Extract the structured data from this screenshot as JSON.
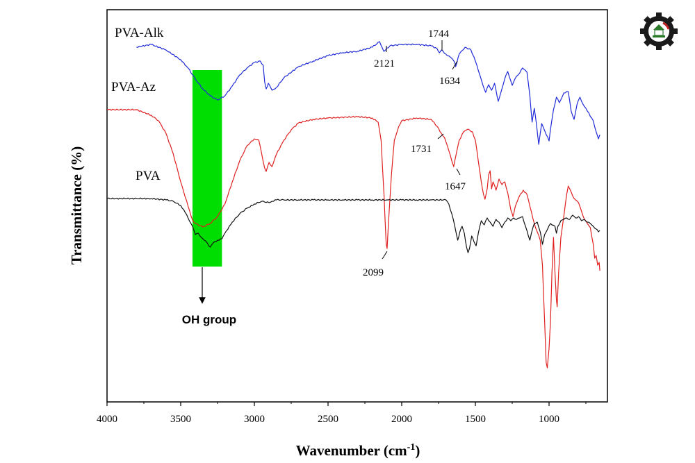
{
  "chart_data": {
    "type": "line",
    "title": "",
    "xlabel": "Wavenumber (cm",
    "xlabel_sup": "-1",
    "xlabel_close": ")",
    "ylabel": "Transmittance (%)",
    "xlim": [
      4000,
      650
    ],
    "x_reversed": true,
    "y_ticks_shown": false,
    "x_ticks": [
      4000,
      3500,
      3000,
      2500,
      2000,
      1500,
      1000
    ],
    "grid": false,
    "legend": "none",
    "series": [
      {
        "name": "PVA-Alk",
        "color": "#1f2bd8",
        "y_offset": 68,
        "points": [
          [
            3800,
            0
          ],
          [
            3700,
            -4
          ],
          [
            3600,
            4
          ],
          [
            3500,
            18
          ],
          [
            3450,
            30
          ],
          [
            3400,
            46
          ],
          [
            3350,
            60
          ],
          [
            3300,
            70
          ],
          [
            3250,
            76
          ],
          [
            3200,
            70
          ],
          [
            3150,
            56
          ],
          [
            3100,
            40
          ],
          [
            3050,
            30
          ],
          [
            3000,
            22
          ],
          [
            2960,
            20
          ],
          [
            2940,
            26
          ],
          [
            2930,
            50
          ],
          [
            2920,
            60
          ],
          [
            2905,
            52
          ],
          [
            2880,
            62
          ],
          [
            2850,
            58
          ],
          [
            2800,
            44
          ],
          [
            2700,
            28
          ],
          [
            2600,
            20
          ],
          [
            2500,
            12
          ],
          [
            2400,
            8
          ],
          [
            2300,
            6
          ],
          [
            2200,
            0
          ],
          [
            2150,
            -8
          ],
          [
            2121,
            6
          ],
          [
            2080,
            -2
          ],
          [
            2000,
            -4
          ],
          [
            1900,
            -4
          ],
          [
            1800,
            -2
          ],
          [
            1760,
            2
          ],
          [
            1744,
            8
          ],
          [
            1730,
            4
          ],
          [
            1700,
            10
          ],
          [
            1660,
            16
          ],
          [
            1640,
            22
          ],
          [
            1634,
            28
          ],
          [
            1610,
            10
          ],
          [
            1570,
            0
          ],
          [
            1530,
            4
          ],
          [
            1500,
            20
          ],
          [
            1470,
            40
          ],
          [
            1440,
            60
          ],
          [
            1430,
            65
          ],
          [
            1410,
            54
          ],
          [
            1390,
            62
          ],
          [
            1370,
            52
          ],
          [
            1345,
            78
          ],
          [
            1320,
            60
          ],
          [
            1300,
            45
          ],
          [
            1280,
            35
          ],
          [
            1250,
            55
          ],
          [
            1230,
            45
          ],
          [
            1210,
            40
          ],
          [
            1180,
            30
          ],
          [
            1150,
            36
          ],
          [
            1130,
            70
          ],
          [
            1115,
            108
          ],
          [
            1100,
            88
          ],
          [
            1085,
            112
          ],
          [
            1070,
            140
          ],
          [
            1050,
            110
          ],
          [
            1030,
            120
          ],
          [
            1000,
            135
          ],
          [
            990,
            118
          ],
          [
            970,
            90
          ],
          [
            950,
            72
          ],
          [
            930,
            80
          ],
          [
            900,
            66
          ],
          [
            870,
            64
          ],
          [
            850,
            92
          ],
          [
            830,
            104
          ],
          [
            810,
            82
          ],
          [
            790,
            72
          ],
          [
            770,
            82
          ],
          [
            740,
            92
          ],
          [
            700,
            106
          ],
          [
            680,
            122
          ],
          [
            665,
            132
          ],
          [
            655,
            126
          ]
        ]
      },
      {
        "name": "PVA-Az",
        "color": "#e02020",
        "y_offset": 162,
        "points": [
          [
            4000,
            -4
          ],
          [
            3800,
            -4
          ],
          [
            3700,
            4
          ],
          [
            3650,
            12
          ],
          [
            3600,
            30
          ],
          [
            3550,
            60
          ],
          [
            3500,
            100
          ],
          [
            3450,
            135
          ],
          [
            3420,
            155
          ],
          [
            3400,
            160
          ],
          [
            3350,
            165
          ],
          [
            3300,
            160
          ],
          [
            3250,
            150
          ],
          [
            3200,
            132
          ],
          [
            3150,
            100
          ],
          [
            3100,
            70
          ],
          [
            3050,
            48
          ],
          [
            3000,
            38
          ],
          [
            2970,
            40
          ],
          [
            2950,
            60
          ],
          [
            2930,
            80
          ],
          [
            2920,
            85
          ],
          [
            2900,
            72
          ],
          [
            2880,
            78
          ],
          [
            2850,
            60
          ],
          [
            2800,
            40
          ],
          [
            2750,
            25
          ],
          [
            2700,
            15
          ],
          [
            2600,
            10
          ],
          [
            2500,
            8
          ],
          [
            2300,
            6
          ],
          [
            2200,
            8
          ],
          [
            2160,
            14
          ],
          [
            2140,
            40
          ],
          [
            2120,
            120
          ],
          [
            2105,
            190
          ],
          [
            2099,
            196
          ],
          [
            2090,
            160
          ],
          [
            2070,
            90
          ],
          [
            2050,
            40
          ],
          [
            2020,
            20
          ],
          [
            2000,
            12
          ],
          [
            1900,
            8
          ],
          [
            1800,
            10
          ],
          [
            1760,
            20
          ],
          [
            1731,
            30
          ],
          [
            1710,
            36
          ],
          [
            1680,
            55
          ],
          [
            1660,
            70
          ],
          [
            1647,
            78
          ],
          [
            1630,
            60
          ],
          [
            1610,
            40
          ],
          [
            1580,
            28
          ],
          [
            1550,
            24
          ],
          [
            1520,
            28
          ],
          [
            1500,
            40
          ],
          [
            1480,
            70
          ],
          [
            1460,
            100
          ],
          [
            1445,
            118
          ],
          [
            1435,
            125
          ],
          [
            1420,
            110
          ],
          [
            1410,
            90
          ],
          [
            1400,
            84
          ],
          [
            1390,
            110
          ],
          [
            1380,
            100
          ],
          [
            1360,
            112
          ],
          [
            1340,
            96
          ],
          [
            1320,
            104
          ],
          [
            1300,
            100
          ],
          [
            1280,
            116
          ],
          [
            1260,
            140
          ],
          [
            1245,
            150
          ],
          [
            1230,
            136
          ],
          [
            1200,
            120
          ],
          [
            1175,
            112
          ],
          [
            1150,
            118
          ],
          [
            1130,
            135
          ],
          [
            1100,
            160
          ],
          [
            1080,
            172
          ],
          [
            1060,
            184
          ],
          [
            1045,
            220
          ],
          [
            1030,
            300
          ],
          [
            1020,
            360
          ],
          [
            1012,
            368
          ],
          [
            1000,
            340
          ],
          [
            990,
            300
          ],
          [
            980,
            230
          ],
          [
            970,
            180
          ],
          [
            960,
            230
          ],
          [
            950,
            270
          ],
          [
            945,
            280
          ],
          [
            935,
            230
          ],
          [
            920,
            180
          ],
          [
            900,
            150
          ],
          [
            880,
            118
          ],
          [
            870,
            106
          ],
          [
            860,
            110
          ],
          [
            840,
            120
          ],
          [
            820,
            126
          ],
          [
            800,
            130
          ],
          [
            780,
            142
          ],
          [
            760,
            154
          ],
          [
            740,
            160
          ],
          [
            720,
            166
          ],
          [
            700,
            190
          ],
          [
            690,
            210
          ],
          [
            680,
            206
          ],
          [
            670,
            220
          ],
          [
            660,
            216
          ],
          [
            655,
            228
          ]
        ]
      },
      {
        "name": "PVA",
        "color": "#111111",
        "y_offset": 286,
        "points": [
          [
            4000,
            0
          ],
          [
            3800,
            0
          ],
          [
            3700,
            0
          ],
          [
            3600,
            2
          ],
          [
            3550,
            4
          ],
          [
            3500,
            10
          ],
          [
            3470,
            20
          ],
          [
            3450,
            28
          ],
          [
            3420,
            40
          ],
          [
            3400,
            52
          ],
          [
            3380,
            50
          ],
          [
            3360,
            56
          ],
          [
            3340,
            60
          ],
          [
            3320,
            64
          ],
          [
            3300,
            70
          ],
          [
            3280,
            64
          ],
          [
            3250,
            60
          ],
          [
            3220,
            58
          ],
          [
            3200,
            50
          ],
          [
            3150,
            34
          ],
          [
            3100,
            22
          ],
          [
            3050,
            14
          ],
          [
            3000,
            8
          ],
          [
            2950,
            4
          ],
          [
            2900,
            6
          ],
          [
            2880,
            4
          ],
          [
            2850,
            2
          ],
          [
            2800,
            2
          ],
          [
            2700,
            2
          ],
          [
            2600,
            2
          ],
          [
            2500,
            2
          ],
          [
            2400,
            2
          ],
          [
            2300,
            2
          ],
          [
            2200,
            2
          ],
          [
            2100,
            2
          ],
          [
            2000,
            2
          ],
          [
            1900,
            2
          ],
          [
            1800,
            2
          ],
          [
            1700,
            2
          ],
          [
            1680,
            8
          ],
          [
            1650,
            30
          ],
          [
            1630,
            50
          ],
          [
            1620,
            60
          ],
          [
            1605,
            48
          ],
          [
            1590,
            40
          ],
          [
            1575,
            50
          ],
          [
            1560,
            70
          ],
          [
            1550,
            78
          ],
          [
            1540,
            72
          ],
          [
            1525,
            54
          ],
          [
            1510,
            62
          ],
          [
            1495,
            68
          ],
          [
            1480,
            50
          ],
          [
            1470,
            40
          ],
          [
            1460,
            32
          ],
          [
            1440,
            38
          ],
          [
            1420,
            28
          ],
          [
            1400,
            34
          ],
          [
            1380,
            40
          ],
          [
            1360,
            30
          ],
          [
            1340,
            34
          ],
          [
            1320,
            42
          ],
          [
            1300,
            34
          ],
          [
            1280,
            28
          ],
          [
            1260,
            32
          ],
          [
            1240,
            28
          ],
          [
            1220,
            30
          ],
          [
            1200,
            28
          ],
          [
            1180,
            26
          ],
          [
            1160,
            40
          ],
          [
            1140,
            54
          ],
          [
            1130,
            60
          ],
          [
            1120,
            50
          ],
          [
            1100,
            36
          ],
          [
            1080,
            34
          ],
          [
            1060,
            48
          ],
          [
            1045,
            66
          ],
          [
            1030,
            52
          ],
          [
            1010,
            44
          ],
          [
            990,
            36
          ],
          [
            960,
            40
          ],
          [
            950,
            50
          ],
          [
            940,
            40
          ],
          [
            920,
            32
          ],
          [
            900,
            30
          ],
          [
            880,
            28
          ],
          [
            860,
            30
          ],
          [
            840,
            24
          ],
          [
            820,
            28
          ],
          [
            800,
            26
          ],
          [
            780,
            32
          ],
          [
            760,
            30
          ],
          [
            740,
            34
          ],
          [
            720,
            36
          ],
          [
            700,
            40
          ],
          [
            680,
            44
          ],
          [
            665,
            48
          ],
          [
            655,
            46
          ]
        ]
      }
    ],
    "annotations": {
      "peak_2121": "2121",
      "peak_1744": "1744",
      "peak_1634": "1634",
      "peak_1731": "1731",
      "peak_1647": "1647",
      "peak_2099": "2099",
      "oh_group": "OH group"
    },
    "highlight_band": {
      "x_from": 3420,
      "x_to": 3220,
      "color": "#00dd00"
    }
  }
}
